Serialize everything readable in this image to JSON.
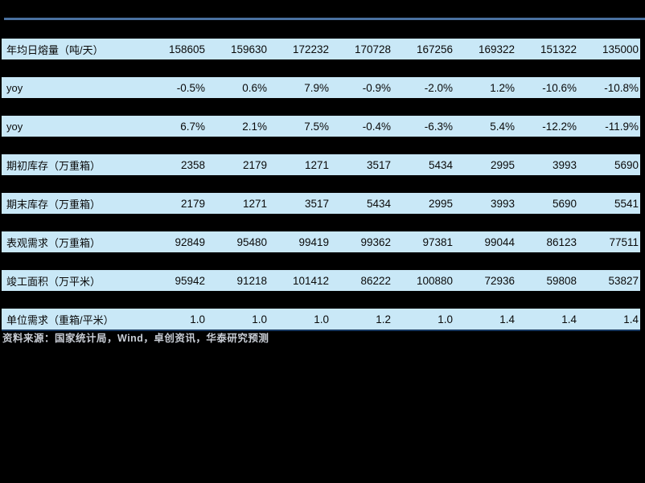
{
  "page": {
    "background_color": "#000000"
  },
  "table": {
    "top_border_color": "#4a71a0",
    "bottom_border_color": "#17365d",
    "row_background_color": "#c9e8f7",
    "text_color": "#0a0a0a",
    "rows": [
      {
        "label": "年均日熔量（吨/天）",
        "values": [
          "158605",
          "159630",
          "172232",
          "170728",
          "167256",
          "169322",
          "151322",
          "135000"
        ]
      },
      {
        "label": "yoy",
        "values": [
          "-0.5%",
          "0.6%",
          "7.9%",
          "-0.9%",
          "-2.0%",
          "1.2%",
          "-10.6%",
          "-10.8%"
        ]
      },
      {
        "label": "yoy",
        "values": [
          "6.7%",
          "2.1%",
          "7.5%",
          "-0.4%",
          "-6.3%",
          "5.4%",
          "-12.2%",
          "-11.9%"
        ]
      },
      {
        "label": "期初库存（万重箱）",
        "values": [
          "2358",
          "2179",
          "1271",
          "3517",
          "5434",
          "2995",
          "3993",
          "5690"
        ]
      },
      {
        "label": "期末库存（万重箱）",
        "values": [
          "2179",
          "1271",
          "3517",
          "5434",
          "2995",
          "3993",
          "5690",
          "5541"
        ]
      },
      {
        "label": "表观需求（万重箱）",
        "values": [
          "92849",
          "95480",
          "99419",
          "99362",
          "97381",
          "99044",
          "86123",
          "77511"
        ]
      },
      {
        "label": "竣工面积（万平米）",
        "values": [
          "95942",
          "91218",
          "101412",
          "86222",
          "100880",
          "72936",
          "59808",
          "53827"
        ]
      },
      {
        "label": "单位需求（重箱/平米）",
        "values": [
          "1.0",
          "1.0",
          "1.0",
          "1.2",
          "1.0",
          "1.4",
          "1.4",
          "1.4"
        ]
      }
    ]
  },
  "source_note": {
    "text": "资料来源：国家统计局，Wind，卓创资讯，华泰研究预测",
    "text_color": "#c9ced6"
  }
}
